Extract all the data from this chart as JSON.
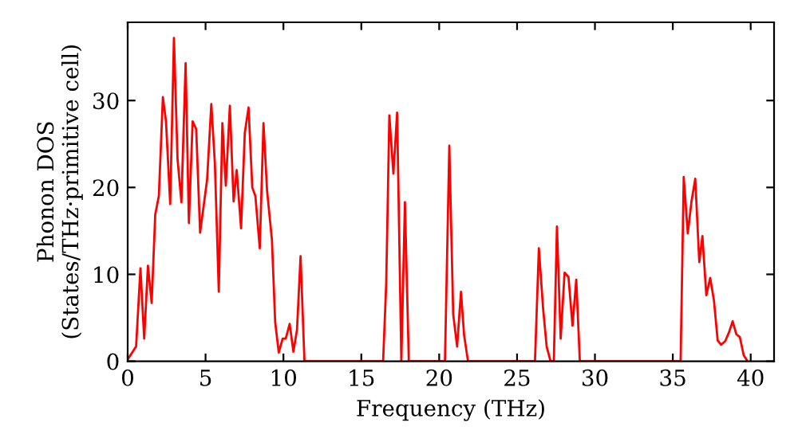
{
  "chart_data": {
    "type": "line",
    "xlabel": "Frequency (THz)",
    "ylabel": "Phonon DOS\n(States/THz·primitive cell)",
    "xlim": [
      0,
      41.5
    ],
    "ylim": [
      0,
      39
    ],
    "xticks": [
      0,
      5,
      10,
      15,
      20,
      25,
      30,
      35,
      40
    ],
    "yticks": [
      0,
      10,
      20,
      30
    ],
    "grid": false,
    "legend": false,
    "marker": "none",
    "line_style": "solid",
    "series": [
      {
        "color": "#ff0000",
        "x": [
          0,
          0.54,
          0.82,
          1.06,
          1.3,
          1.54,
          1.77,
          2.0,
          2.26,
          2.46,
          2.73,
          2.97,
          3.2,
          3.45,
          3.72,
          3.93,
          4.17,
          4.4,
          4.65,
          5.1,
          5.37,
          5.6,
          5.85,
          6.08,
          6.3,
          6.56,
          6.8,
          7.0,
          7.28,
          7.52,
          7.76,
          8.0,
          8.2,
          8.48,
          8.72,
          8.95,
          9.26,
          9.47,
          9.7,
          9.95,
          10.15,
          10.4,
          10.64,
          10.87,
          11.1,
          11.35,
          16.4,
          16.6,
          16.8,
          17.06,
          17.3,
          17.57,
          17.8,
          18.05,
          20.37,
          20.65,
          20.9,
          21.15,
          21.4,
          21.6,
          21.85,
          26.15,
          26.4,
          26.67,
          26.9,
          27.15,
          27.36,
          27.56,
          27.8,
          28.05,
          28.3,
          28.56,
          28.8,
          29.03,
          35.5,
          35.7,
          35.96,
          36.2,
          36.44,
          36.7,
          36.9,
          37.15,
          37.4,
          37.64,
          37.88,
          38.1,
          38.36,
          38.6,
          38.84,
          39.08,
          39.3,
          39.55,
          39.8
        ],
        "values": [
          0.2,
          1.7,
          10.7,
          2.6,
          11,
          6.7,
          16.9,
          19,
          30.4,
          27.6,
          18.1,
          37.2,
          23.3,
          18.3,
          34.3,
          15.9,
          27.6,
          26.7,
          14.8,
          20.9,
          29.6,
          22.7,
          8,
          27.4,
          20.2,
          29.4,
          18.4,
          22,
          15.3,
          26.3,
          29.2,
          20,
          19,
          13,
          27.4,
          19.6,
          14,
          4.5,
          1,
          2.6,
          2.6,
          4.3,
          1.1,
          3.6,
          12.1,
          0,
          0,
          9,
          28.3,
          21.6,
          28.6,
          0,
          18.3,
          0,
          0,
          24.8,
          5.4,
          1.7,
          8,
          3,
          0,
          0,
          13,
          6.1,
          1.7,
          0,
          0,
          15.5,
          2.6,
          10.2,
          9.7,
          4.1,
          9.4,
          0,
          0,
          21.2,
          14.7,
          18.4,
          21,
          11.4,
          14.4,
          7.6,
          9.6,
          7,
          2.4,
          1.9,
          2.3,
          3.3,
          4.6,
          3.1,
          2.8,
          0.7,
          0
        ]
      }
    ]
  }
}
